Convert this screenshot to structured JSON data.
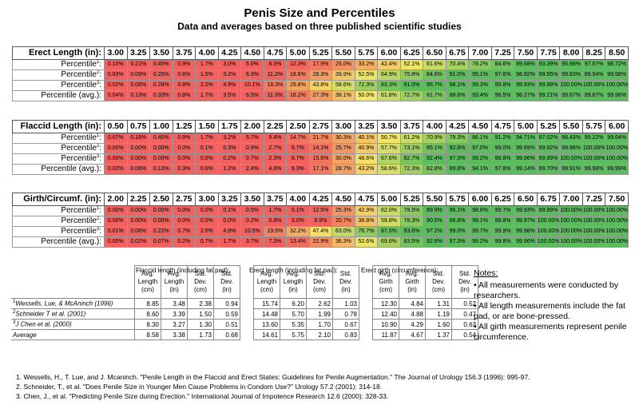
{
  "title": "Penis Size and Percentiles",
  "subtitle": "Data and averages based on three published scientific studies",
  "sections": [
    {
      "header": "Erect Length (in):",
      "sizes": [
        "3.00",
        "3.25",
        "3.50",
        "3.75",
        "4.00",
        "4.25",
        "4.50",
        "4.75",
        "5.00",
        "5.25",
        "5.50",
        "5.75",
        "6.00",
        "6.25",
        "6.50",
        "6.75",
        "7.00",
        "7.25",
        "7.50",
        "7.75",
        "8.00",
        "8.25",
        "8.50"
      ],
      "rows": [
        {
          "label": "Percentile",
          "sup": "1",
          "values": [
            "0.10%",
            "0.21%",
            "0.45%",
            "0.9%",
            "1.7%",
            "3.0%",
            "5.0%",
            "8.0%",
            "12.3%",
            "17.9%",
            "25.0%",
            "33.2%",
            "42.4%",
            "52.1%",
            "61.6%",
            "70.4%",
            "78.2%",
            "84.6%",
            "89.68%",
            "93.39%",
            "95.98%",
            "97.67%",
            "98.72%"
          ]
        },
        {
          "label": "Percentile",
          "sup": "2",
          "values": [
            "0.03%",
            "0.09%",
            "0.25%",
            "0.6%",
            "1.5%",
            "3.2%",
            "6.3%",
            "11.2%",
            "18.6%",
            "28.3%",
            "39.9%",
            "52.5%",
            "64.9%",
            "75.8%",
            "84.6%",
            "91.0%",
            "95.1%",
            "97.6%",
            "98.92%",
            "99.55%",
            "99.83%",
            "99.94%",
            "99.98%"
          ]
        },
        {
          "label": "Percentile",
          "sup": "3",
          "values": [
            "0.02%",
            "0.08%",
            "0.28%",
            "0.8%",
            "2.2%",
            "4.9%",
            "10.1%",
            "18.3%",
            "29.8%",
            "43.8%",
            "58.6%",
            "72.3%",
            "83.3%",
            "91.0%",
            "95.7%",
            "98.1%",
            "99.3%",
            "99.8%",
            "99.93%",
            "99.98%",
            "100.00%",
            "100.00%",
            "100.00%"
          ]
        },
        {
          "label": "Percentile (avg.)",
          "sup": "",
          "values": [
            "0.04%",
            "0.13%",
            "0.33%",
            "0.8%",
            "1.7%",
            "3.5%",
            "6.5%",
            "11.3%",
            "18.2%",
            "27.3%",
            "38.1%",
            "50.0%",
            "61.8%",
            "72.7%",
            "81.7%",
            "88.6%",
            "93.4%",
            "96.5%",
            "98.27%",
            "99.21%",
            "99.67%",
            "99.87%",
            "99.96%"
          ]
        }
      ]
    },
    {
      "header": "Flaccid Length (in):",
      "sizes": [
        "0.50",
        "0.75",
        "1.00",
        "1.25",
        "1.50",
        "1.75",
        "2.00",
        "2.25",
        "2.50",
        "2.75",
        "3.00",
        "3.25",
        "3.50",
        "3.75",
        "4.00",
        "4.25",
        "4.50",
        "4.75",
        "5.00",
        "5.25",
        "5.50",
        "5.75",
        "6.00"
      ],
      "rows": [
        {
          "label": "Percentile",
          "sup": "1",
          "values": [
            "0.07%",
            "0.18%",
            "0.40%",
            "0.9%",
            "1.7%",
            "3.2%",
            "5.7%",
            "9.4%",
            "14.7%",
            "21.7%",
            "30.3%",
            "40.1%",
            "50.7%",
            "61.2%",
            "70.9%",
            "79.3%",
            "86.1%",
            "91.2%",
            "94.71%",
            "97.02%",
            "98.43%",
            "99.22%",
            "99.64%"
          ]
        },
        {
          "label": "Percentile",
          "sup": "2",
          "values": [
            "0.00%",
            "0.00%",
            "0.00%",
            "0.0%",
            "0.1%",
            "0.3%",
            "0.9%",
            "2.7%",
            "6.7%",
            "14.1%",
            "25.7%",
            "40.9%",
            "57.7%",
            "73.1%",
            "85.1%",
            "92.8%",
            "97.0%",
            "99.0%",
            "99.69%",
            "99.92%",
            "99.98%",
            "100.00%",
            "100.00%"
          ]
        },
        {
          "label": "Percentile",
          "sup": "3",
          "values": [
            "0.00%",
            "0.00%",
            "0.00%",
            "0.0%",
            "0.0%",
            "0.2%",
            "0.7%",
            "2.3%",
            "6.7%",
            "15.6%",
            "30.0%",
            "48.6%",
            "67.6%",
            "82.7%",
            "92.4%",
            "97.3%",
            "99.2%",
            "99.8%",
            "99.96%",
            "99.99%",
            "100.00%",
            "100.00%",
            "100.00%"
          ]
        },
        {
          "label": "Percentile (avg.)",
          "sup": "",
          "values": [
            "0.02%",
            "0.06%",
            "0.13%",
            "0.3%",
            "0.6%",
            "1.2%",
            "2.4%",
            "4.8%",
            "9.3%",
            "17.1%",
            "28.7%",
            "43.2%",
            "58.6%",
            "72.3%",
            "82.8%",
            "89.8%",
            "94.1%",
            "97.8%",
            "99.14%",
            "99.70%",
            "99.91%",
            "99.98%",
            "99.99%"
          ]
        }
      ]
    },
    {
      "header": "Girth/Circumf. (in):",
      "sizes": [
        "2.00",
        "2.25",
        "2.50",
        "2.75",
        "3.00",
        "3.25",
        "3.50",
        "3.75",
        "4.00",
        "4.25",
        "4.50",
        "4.75",
        "5.00",
        "5.25",
        "5.50",
        "5.75",
        "6.00",
        "6.25",
        "6.50",
        "6.75",
        "7.00",
        "7.25",
        "7.50"
      ],
      "rows": [
        {
          "label": "Percentile",
          "sup": "1",
          "values": [
            "0.00%",
            "0.00%",
            "0.00%",
            "0.0%",
            "0.0%",
            "0.1%",
            "0.5%",
            "1.7%",
            "5.1%",
            "12.5%",
            "25.3%",
            "42.9%",
            "62.0%",
            "78.5%",
            "89.9%",
            "96.1%",
            "98.8%",
            "99.7%",
            "99.93%",
            "99.99%",
            "100.00%",
            "100.00%",
            "100.00%"
          ]
        },
        {
          "label": "Percentile",
          "sup": "2",
          "values": [
            "0.00%",
            "0.00%",
            "0.00%",
            "0.0%",
            "0.0%",
            "0.0%",
            "0.2%",
            "0.8%",
            "3.0%",
            "8.9%",
            "20.7%",
            "38.8%",
            "59.8%",
            "78.3%",
            "90.5%",
            "96.8%",
            "99.1%",
            "99.8%",
            "99.97%",
            "100.00%",
            "100.00%",
            "100.00%",
            "100.00%"
          ]
        },
        {
          "label": "Percentile",
          "sup": "3",
          "values": [
            "0.01%",
            "0.06%",
            "0.22%",
            "0.7%",
            "2.0%",
            "4.9%",
            "10.5%",
            "19.5%",
            "32.2%",
            "47.4%",
            "63.0%",
            "76.7%",
            "87.0%",
            "93.6%",
            "97.2%",
            "99.0%",
            "99.7%",
            "99.9%",
            "99.98%",
            "100.00%",
            "100.00%",
            "100.00%",
            "100.00%"
          ]
        },
        {
          "label": "Percentile (avg.)",
          "sup": "",
          "values": [
            "0.00%",
            "0.02%",
            "0.07%",
            "0.2%",
            "0.7%",
            "1.7%",
            "3.7%",
            "7.3%",
            "13.4%",
            "22.9%",
            "36.3%",
            "52.6%",
            "69.6%",
            "83.5%",
            "92.6%",
            "97.3%",
            "99.2%",
            "99.8%",
            "99.96%",
            "100.00%",
            "100.00%",
            "100.00%",
            "100.00%"
          ]
        }
      ]
    }
  ],
  "averages": {
    "group_labels": [
      "Flaccid length (including fat pad):",
      "Erect length (including fat pad):",
      "Erect girth (circumference):"
    ],
    "col_heads": [
      [
        "Avg. Length (cm)",
        "Avg. Length (in)",
        "Std. Dev. (cm)",
        "Std. Dev. (in)"
      ],
      [
        "Avg. Length (cm)",
        "Avg. Length (in)",
        "Std. Dev. (cm)",
        "Std. Dev. (in)"
      ],
      [
        "Avg. Girth (cm)",
        "Avg. Girth (in)",
        "Std. Dev. (cm)",
        "Std. Dev. (in)"
      ]
    ],
    "rows": [
      {
        "sup": "1",
        "name": "Wessells, Lue, & McAninch (1996)",
        "values": [
          [
            "8.85",
            "3.48",
            "2.38",
            "0.94"
          ],
          [
            "15.74",
            "6.20",
            "2.62",
            "1.03"
          ],
          [
            "12.30",
            "4.84",
            "1.31",
            "0.52"
          ]
        ]
      },
      {
        "sup": "2",
        "name": "Schneider T et al. (2001)",
        "values": [
          [
            "8.60",
            "3.39",
            "1.50",
            "0.59"
          ],
          [
            "14.48",
            "5.70",
            "1.99",
            "0.78"
          ],
          [
            "12.40",
            "4.88",
            "1.19",
            "0.47"
          ]
        ]
      },
      {
        "sup": "3",
        "name": "J Chen et al. (2000)",
        "values": [
          [
            "8.30",
            "3.27",
            "1.30",
            "0.51"
          ],
          [
            "13.60",
            "5.35",
            "1.70",
            "0.67"
          ],
          [
            "10.90",
            "4.29",
            "1.60",
            "0.63"
          ]
        ]
      },
      {
        "sup": "",
        "name": "Average",
        "values": [
          [
            "8.58",
            "3.38",
            "1.73",
            "0.68"
          ],
          [
            "14.61",
            "5.75",
            "2.10",
            "0.83"
          ],
          [
            "11.87",
            "4.67",
            "1.37",
            "0.54"
          ]
        ]
      }
    ]
  },
  "notes": {
    "heading": "Notes:",
    "items": [
      "• All measurements were conducted by researchers.",
      "• All length measurements include the fat pad, or are bone-pressed.",
      "• All girth measurements represent penile circumference."
    ]
  },
  "references": [
    "1. Wessells, H., T. Lue, and J. Mcaninch. \"Penile Length in the Flaccid and Erect States: Guidelines for Penile Augmentation.\" The Journal of Urology 156.3 (1996): 995-97.",
    "2. Schneider, T., et al. \"Does Penile Size in Younger Men Cause Problems in Condom Use?\" Urology 57.2 (2001): 314-18.",
    "3. Chen, J., et al. \"Predicting Penile Size during Erection.\" International Journal of Impotence Research 12.6 (2000): 328-33."
  ],
  "colors": {
    "low": "#f0615f",
    "mid": "#f5e76a",
    "high": "#5dbb5f"
  }
}
